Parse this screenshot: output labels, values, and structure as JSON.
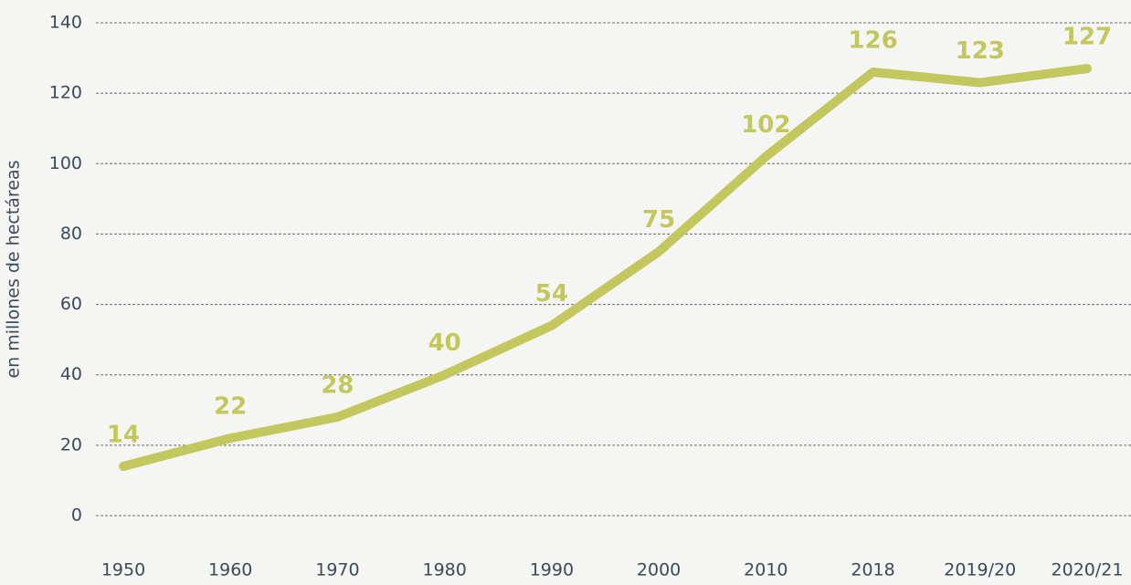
{
  "chart_data": {
    "type": "line",
    "y_label": "en millones de hectáreas",
    "categories": [
      "1950",
      "1960",
      "1970",
      "1980",
      "1990",
      "2000",
      "2010",
      "2018",
      "2019/20",
      "2020/21"
    ],
    "values": [
      14,
      22,
      28,
      40,
      54,
      75,
      102,
      126,
      123,
      127
    ],
    "color": "#c3c85e",
    "ylim": [
      0,
      140
    ],
    "yticks": [
      0,
      20,
      40,
      60,
      80,
      100,
      120,
      140
    ],
    "grid": true
  }
}
